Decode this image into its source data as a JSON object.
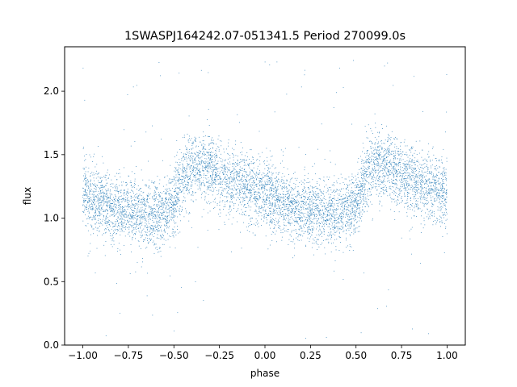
{
  "chart_data": {
    "type": "scatter",
    "title": "1SWASPJ164242.07-051341.5 Period 270099.0s",
    "xlabel": "phase",
    "ylabel": "flux",
    "xlim": [
      -1.1,
      1.1
    ],
    "ylim": [
      0.0,
      2.35
    ],
    "xticks": [
      -1.0,
      -0.75,
      -0.5,
      -0.25,
      0.0,
      0.25,
      0.5,
      0.75,
      1.0
    ],
    "xtick_labels": [
      "−1.00",
      "−0.75",
      "−0.50",
      "−0.25",
      "0.00",
      "0.25",
      "0.50",
      "0.75",
      "1.00"
    ],
    "yticks": [
      0.0,
      0.5,
      1.0,
      1.5,
      2.0
    ],
    "ytick_labels": [
      "0.0",
      "0.5",
      "1.0",
      "1.5",
      "2.0"
    ],
    "grid": false,
    "marker_color": "#1f77b4",
    "series": [
      {
        "x_range": [
          -1.0,
          1.0
        ],
        "period_in_phase": 1.0,
        "flux_profile": {
          "phase": [
            0.0,
            0.05,
            0.1,
            0.15,
            0.2,
            0.25,
            0.3,
            0.35,
            0.4,
            0.45,
            0.5,
            0.55,
            0.6,
            0.65,
            0.7,
            0.75,
            0.8,
            0.85,
            0.9,
            0.95,
            1.0
          ],
          "flux": [
            1.2,
            1.15,
            1.12,
            1.09,
            1.07,
            1.06,
            1.05,
            1.04,
            1.03,
            1.05,
            1.12,
            1.32,
            1.4,
            1.42,
            1.4,
            1.33,
            1.3,
            1.27,
            1.25,
            1.22,
            1.2
          ]
        },
        "scatter_sigma": 0.13,
        "outlier_flux_range": [
          0.05,
          2.3
        ]
      }
    ]
  }
}
